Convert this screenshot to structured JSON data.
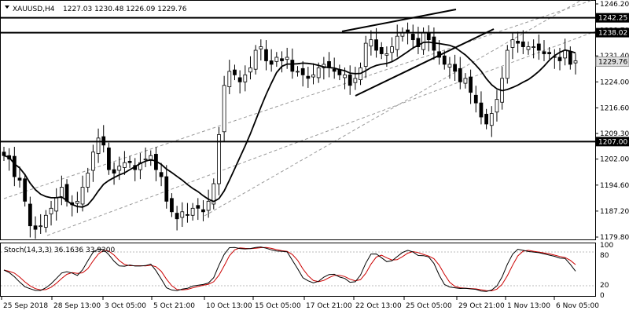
{
  "header": {
    "symbol_tf": "XAUUSD,H4",
    "ohlc": "1227.03 1230.48 1226.09 1229.76"
  },
  "stoch_header": "Stoch(14,3,3) 36.1636 33.9200",
  "chart_data": [
    {
      "type": "candlestick",
      "title": "XAUUSD,H4",
      "x_tick_labels": [
        "25 Sep 2018",
        "28 Sep 13:00",
        "3 Oct 05:00",
        "5 Oct 21:00",
        "10 Oct 13:00",
        "15 Oct 05:00",
        "17 Oct 21:00",
        "22 Oct 13:00",
        "25 Oct 05:00",
        "29 Oct 21:00",
        "1 Nov 13:00",
        "6 Nov 05:00"
      ],
      "y_tick_labels": [
        "1246.20",
        "1238.70",
        "1231.40",
        "1224.00",
        "1216.60",
        "1209.30",
        "1202.00",
        "1194.60",
        "1187.20",
        "1179.80"
      ],
      "ylim": [
        1179.8,
        1246.2
      ],
      "horizontal_levels": [
        {
          "label": "1242.25",
          "value": 1242.25
        },
        {
          "label": "1238.02",
          "value": 1238.02
        },
        {
          "label": "1207.00",
          "value": 1207.0
        }
      ],
      "current_price": {
        "label": "1229.76",
        "value": 1229.76
      },
      "close_series_approx": [
        1203,
        1202,
        1197,
        1196,
        1190,
        1183,
        1182,
        1183,
        1186,
        1188,
        1191,
        1194,
        1190,
        1189,
        1190,
        1194,
        1198,
        1204,
        1208,
        1206,
        1199,
        1198,
        1200,
        1201,
        1201,
        1199,
        1201,
        1202,
        1203,
        1199,
        1197,
        1190,
        1187,
        1185,
        1187,
        1186,
        1188,
        1188,
        1187,
        1190,
        1195,
        1209,
        1223,
        1227,
        1226,
        1224,
        1226,
        1228,
        1233,
        1234,
        1230,
        1229,
        1231,
        1230,
        1231,
        1227,
        1227,
        1226,
        1225,
        1226,
        1228,
        1229,
        1228,
        1227,
        1226,
        1226,
        1223,
        1225,
        1228,
        1235,
        1236,
        1233,
        1232,
        1232,
        1234,
        1237,
        1238,
        1238,
        1236,
        1234,
        1238,
        1236,
        1233,
        1231,
        1229,
        1229,
        1227,
        1224,
        1225,
        1221,
        1218,
        1214,
        1212,
        1215,
        1219,
        1225,
        1233,
        1236,
        1235,
        1234,
        1234,
        1234,
        1233,
        1232,
        1232,
        1231,
        1230,
        1233,
        1229,
        1230
      ],
      "indicators": [
        {
          "name": "Stoch(14,3,3)",
          "main": 36.1636,
          "signal": 33.92,
          "levels": [
            20,
            80
          ],
          "scale_labels": [
            "100",
            "80",
            "20",
            "0"
          ]
        }
      ]
    }
  ],
  "colors": {
    "bull": "#ffffff",
    "bear": "#000000",
    "ma": "#000000",
    "stoch_main": "#000000",
    "stoch_signal": "#cc0000",
    "level_tag_bg": "#000000",
    "price_tag_bg": "#dedede"
  }
}
